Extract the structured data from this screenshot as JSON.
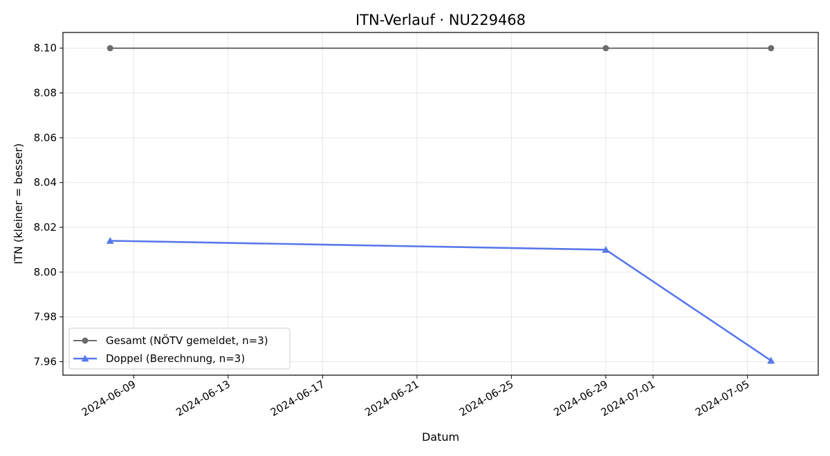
{
  "chart_data": {
    "type": "line",
    "title": "ITN-Verlauf · NU229468",
    "xlabel": "Datum",
    "ylabel": "ITN  (kleiner = besser)",
    "x_type": "date",
    "xlim": [
      "2024-06-06",
      "2024-07-08"
    ],
    "ylim": [
      7.954,
      8.107
    ],
    "x_ticks": [
      "2024-06-09",
      "2024-06-13",
      "2024-06-17",
      "2024-06-21",
      "2024-06-25",
      "2024-06-29",
      "2024-07-01",
      "2024-07-05"
    ],
    "y_ticks": [
      7.96,
      7.98,
      8.0,
      8.02,
      8.04,
      8.06,
      8.08,
      8.1
    ],
    "y_tick_labels": [
      "7.96",
      "7.98",
      "8.00",
      "8.02",
      "8.04",
      "8.06",
      "8.08",
      "8.10"
    ],
    "grid": true,
    "legend_position": "lower-left",
    "series": [
      {
        "name": "Gesamt (NÖTV gemeldet, n=3)",
        "color": "#6b6b6b",
        "marker": "circle",
        "x": [
          "2024-06-08",
          "2024-06-29",
          "2024-07-06"
        ],
        "y": [
          8.1,
          8.1,
          8.1
        ]
      },
      {
        "name": "Doppel (Berechnung, n=3)",
        "color": "#5877ea",
        "marker": "triangle",
        "x": [
          "2024-06-08",
          "2024-06-29",
          "2024-07-06"
        ],
        "y": [
          8.014,
          8.01,
          7.9605
        ]
      }
    ]
  }
}
